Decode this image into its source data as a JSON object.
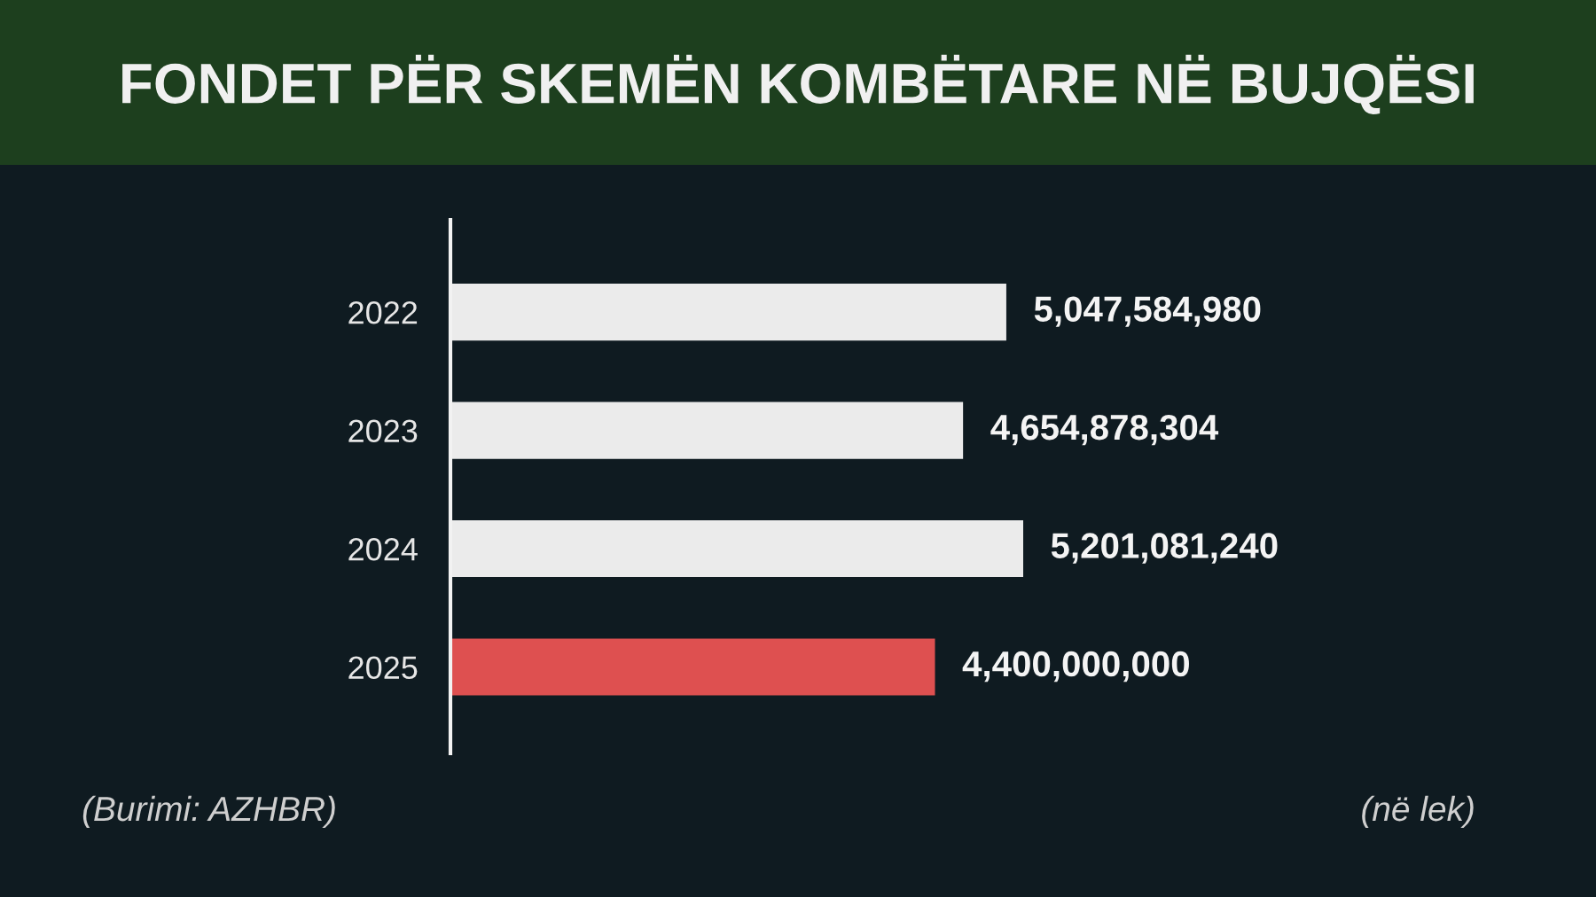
{
  "chart_data": {
    "type": "bar",
    "orientation": "horizontal",
    "title": "FONDET PËR SKEMËN KOMBËTARE NË BUJQËSI",
    "categories": [
      "2022",
      "2023",
      "2024",
      "2025"
    ],
    "values": [
      5047584980,
      4654878304,
      5201081240,
      4400000000
    ],
    "value_labels": [
      "5,047,584,980",
      "4,654,878,304",
      "5,201,081,240",
      "4,400,000,000"
    ],
    "colors": [
      "#ebebeb",
      "#ebebeb",
      "#ebebeb",
      "#de5050"
    ],
    "tick_labels": "y",
    "annotations": [
      "(Burimi: AZHBR)",
      "(në lek)"
    ]
  }
}
